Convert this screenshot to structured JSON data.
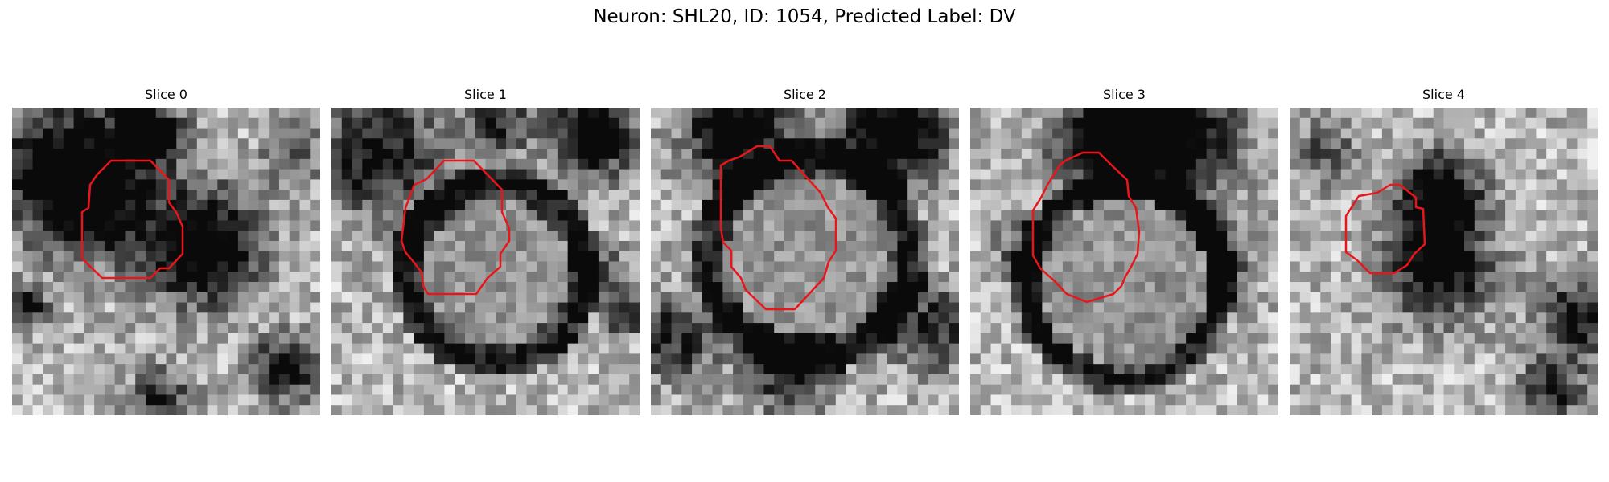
{
  "figure": {
    "title": "Neuron: SHL20, ID: 1054, Predicted Label: DV"
  },
  "panels": [
    {
      "title": "Slice 0"
    },
    {
      "title": "Slice 1"
    },
    {
      "title": "Slice 2"
    },
    {
      "title": "Slice 3"
    },
    {
      "title": "Slice 4"
    }
  ],
  "contour_color": "#e8161a"
}
